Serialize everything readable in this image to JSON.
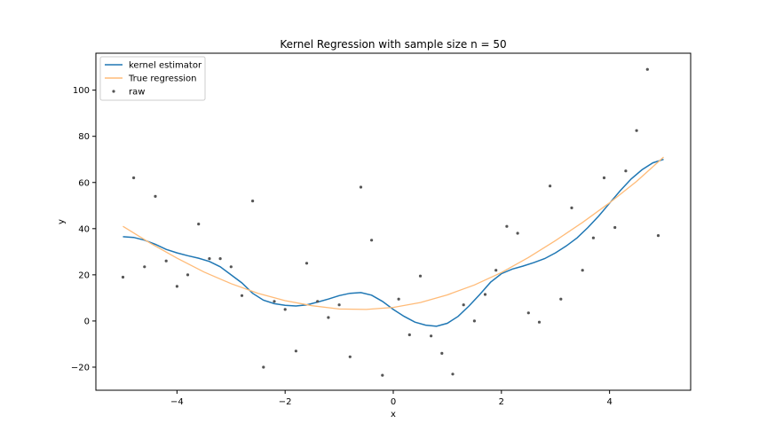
{
  "chart_data": {
    "type": "line",
    "title": "Kernel Regression with sample size n = 50",
    "xlabel": "x",
    "ylabel": "y",
    "xlim": [
      -5.5,
      5.5
    ],
    "ylim": [
      -30,
      116
    ],
    "xticks": [
      -4,
      -2,
      0,
      2,
      4
    ],
    "yticks": [
      -20,
      0,
      20,
      40,
      60,
      80,
      100
    ],
    "grid": false,
    "legend_position": "top-left",
    "series": [
      {
        "name": "kernel estimator",
        "kind": "line",
        "color": "#1f77b4",
        "x": [
          -5.0,
          -4.8,
          -4.6,
          -4.4,
          -4.2,
          -4.0,
          -3.8,
          -3.6,
          -3.4,
          -3.2,
          -3.0,
          -2.8,
          -2.6,
          -2.4,
          -2.2,
          -2.0,
          -1.8,
          -1.6,
          -1.4,
          -1.2,
          -1.0,
          -0.8,
          -0.6,
          -0.4,
          -0.2,
          0.0,
          0.2,
          0.4,
          0.6,
          0.8,
          1.0,
          1.2,
          1.4,
          1.6,
          1.8,
          2.0,
          2.2,
          2.4,
          2.6,
          2.8,
          3.0,
          3.2,
          3.4,
          3.6,
          3.8,
          4.0,
          4.2,
          4.4,
          4.6,
          4.8,
          5.0
        ],
        "y": [
          36.5,
          36.2,
          35,
          33.2,
          31,
          29.5,
          28.3,
          27.2,
          25.8,
          23.5,
          20,
          16.5,
          12,
          9,
          7.5,
          6.8,
          6.5,
          7,
          8.2,
          9.5,
          11,
          12,
          12.3,
          11.2,
          8.5,
          5,
          2,
          -0.5,
          -1.8,
          -2.3,
          -1,
          2,
          6.5,
          11.5,
          16.8,
          20.5,
          22.5,
          23.8,
          25.3,
          27,
          29.5,
          32.5,
          36,
          40.5,
          45.5,
          51,
          56.5,
          61.5,
          65.5,
          68.5,
          70
        ]
      },
      {
        "name": "True regression",
        "kind": "line",
        "color": "#ffbb78",
        "x": [
          -5.0,
          -4.5,
          -4.0,
          -3.5,
          -3.0,
          -2.5,
          -2.0,
          -1.5,
          -1.0,
          -0.5,
          0.0,
          0.5,
          1.0,
          1.5,
          2.0,
          2.5,
          3.0,
          3.5,
          4.0,
          4.5,
          5.0
        ],
        "y": [
          41,
          33.8,
          27.2,
          21.2,
          16.2,
          12,
          8.8,
          6.6,
          5.2,
          5,
          5.9,
          8,
          11.3,
          15.6,
          21,
          27.5,
          34.8,
          42.7,
          51.2,
          60.5,
          71
        ]
      },
      {
        "name": "raw",
        "kind": "scatter",
        "color": "#555555",
        "x": [
          -5.0,
          -4.8,
          -4.6,
          -4.4,
          -4.2,
          -4.0,
          -3.8,
          -3.6,
          -3.4,
          -3.2,
          -3.0,
          -2.8,
          -2.6,
          -2.4,
          -2.2,
          -2.0,
          -1.8,
          -1.6,
          -1.4,
          -1.2,
          -1.0,
          -0.8,
          -0.6,
          -0.4,
          -0.2,
          0.1,
          0.3,
          0.5,
          0.7,
          0.9,
          1.1,
          1.3,
          1.5,
          1.7,
          1.9,
          2.1,
          2.3,
          2.5,
          2.7,
          2.9,
          3.1,
          3.3,
          3.5,
          3.7,
          3.9,
          4.1,
          4.3,
          4.5,
          4.7,
          4.9
        ],
        "y": [
          19,
          62,
          23.5,
          54,
          26,
          15,
          20,
          42,
          27,
          27,
          23.5,
          11,
          52,
          -20,
          8.5,
          5,
          -13,
          25,
          8.5,
          1.5,
          7,
          -15.5,
          58,
          35,
          -23.5,
          9.5,
          -6,
          19.5,
          -6.5,
          -14,
          -23,
          7,
          0,
          11.5,
          22,
          41,
          38,
          3.5,
          -0.5,
          58.5,
          9.5,
          49,
          22,
          36,
          62,
          40.5,
          65,
          82.5,
          109,
          37
        ]
      }
    ]
  }
}
